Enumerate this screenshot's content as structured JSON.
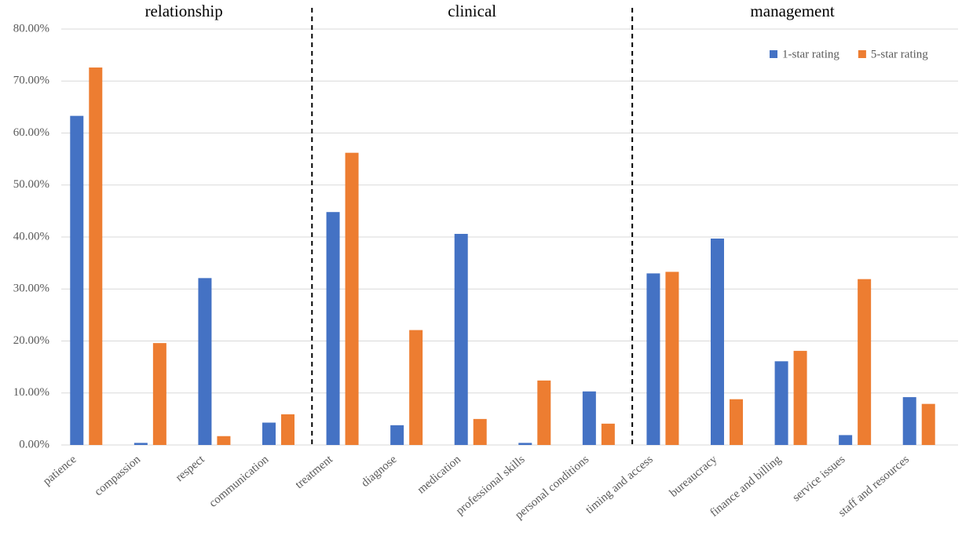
{
  "chart_data": {
    "type": "bar",
    "annotations": [
      "relationship",
      "clinical",
      "management"
    ],
    "categories": [
      "patience",
      "compassion",
      "respect",
      "communication",
      "treatment",
      "diagnose",
      "medication",
      "professional skills",
      "personal conditions",
      "timing and access",
      "bureaucracy",
      "finance and billing",
      "service issues",
      "staff and resources"
    ],
    "series": [
      {
        "name": "1-star rating",
        "color": "#4472c4",
        "values": [
          63.3,
          0.4,
          32.1,
          4.3,
          44.8,
          3.8,
          40.6,
          0.4,
          10.3,
          33.0,
          39.7,
          16.1,
          1.9,
          9.2
        ]
      },
      {
        "name": "5-star rating",
        "color": "#ed7d31",
        "values": [
          72.6,
          19.6,
          1.7,
          5.9,
          56.2,
          22.1,
          5.0,
          12.4,
          4.1,
          33.3,
          8.8,
          18.1,
          31.9,
          7.9
        ]
      }
    ],
    "ylim": [
      0,
      80
    ],
    "yticks": [
      {
        "value": 0,
        "label": "0.00%"
      },
      {
        "value": 10,
        "label": "10.00%"
      },
      {
        "value": 20,
        "label": "20.00%"
      },
      {
        "value": 30,
        "label": "30.00%"
      },
      {
        "value": 40,
        "label": "40.00%"
      },
      {
        "value": 50,
        "label": "50.00%"
      },
      {
        "value": 60,
        "label": "60.00%"
      },
      {
        "value": 70,
        "label": "70.00%"
      },
      {
        "value": 80,
        "label": "80.00%"
      }
    ],
    "grid": true,
    "legend": "top-right"
  }
}
